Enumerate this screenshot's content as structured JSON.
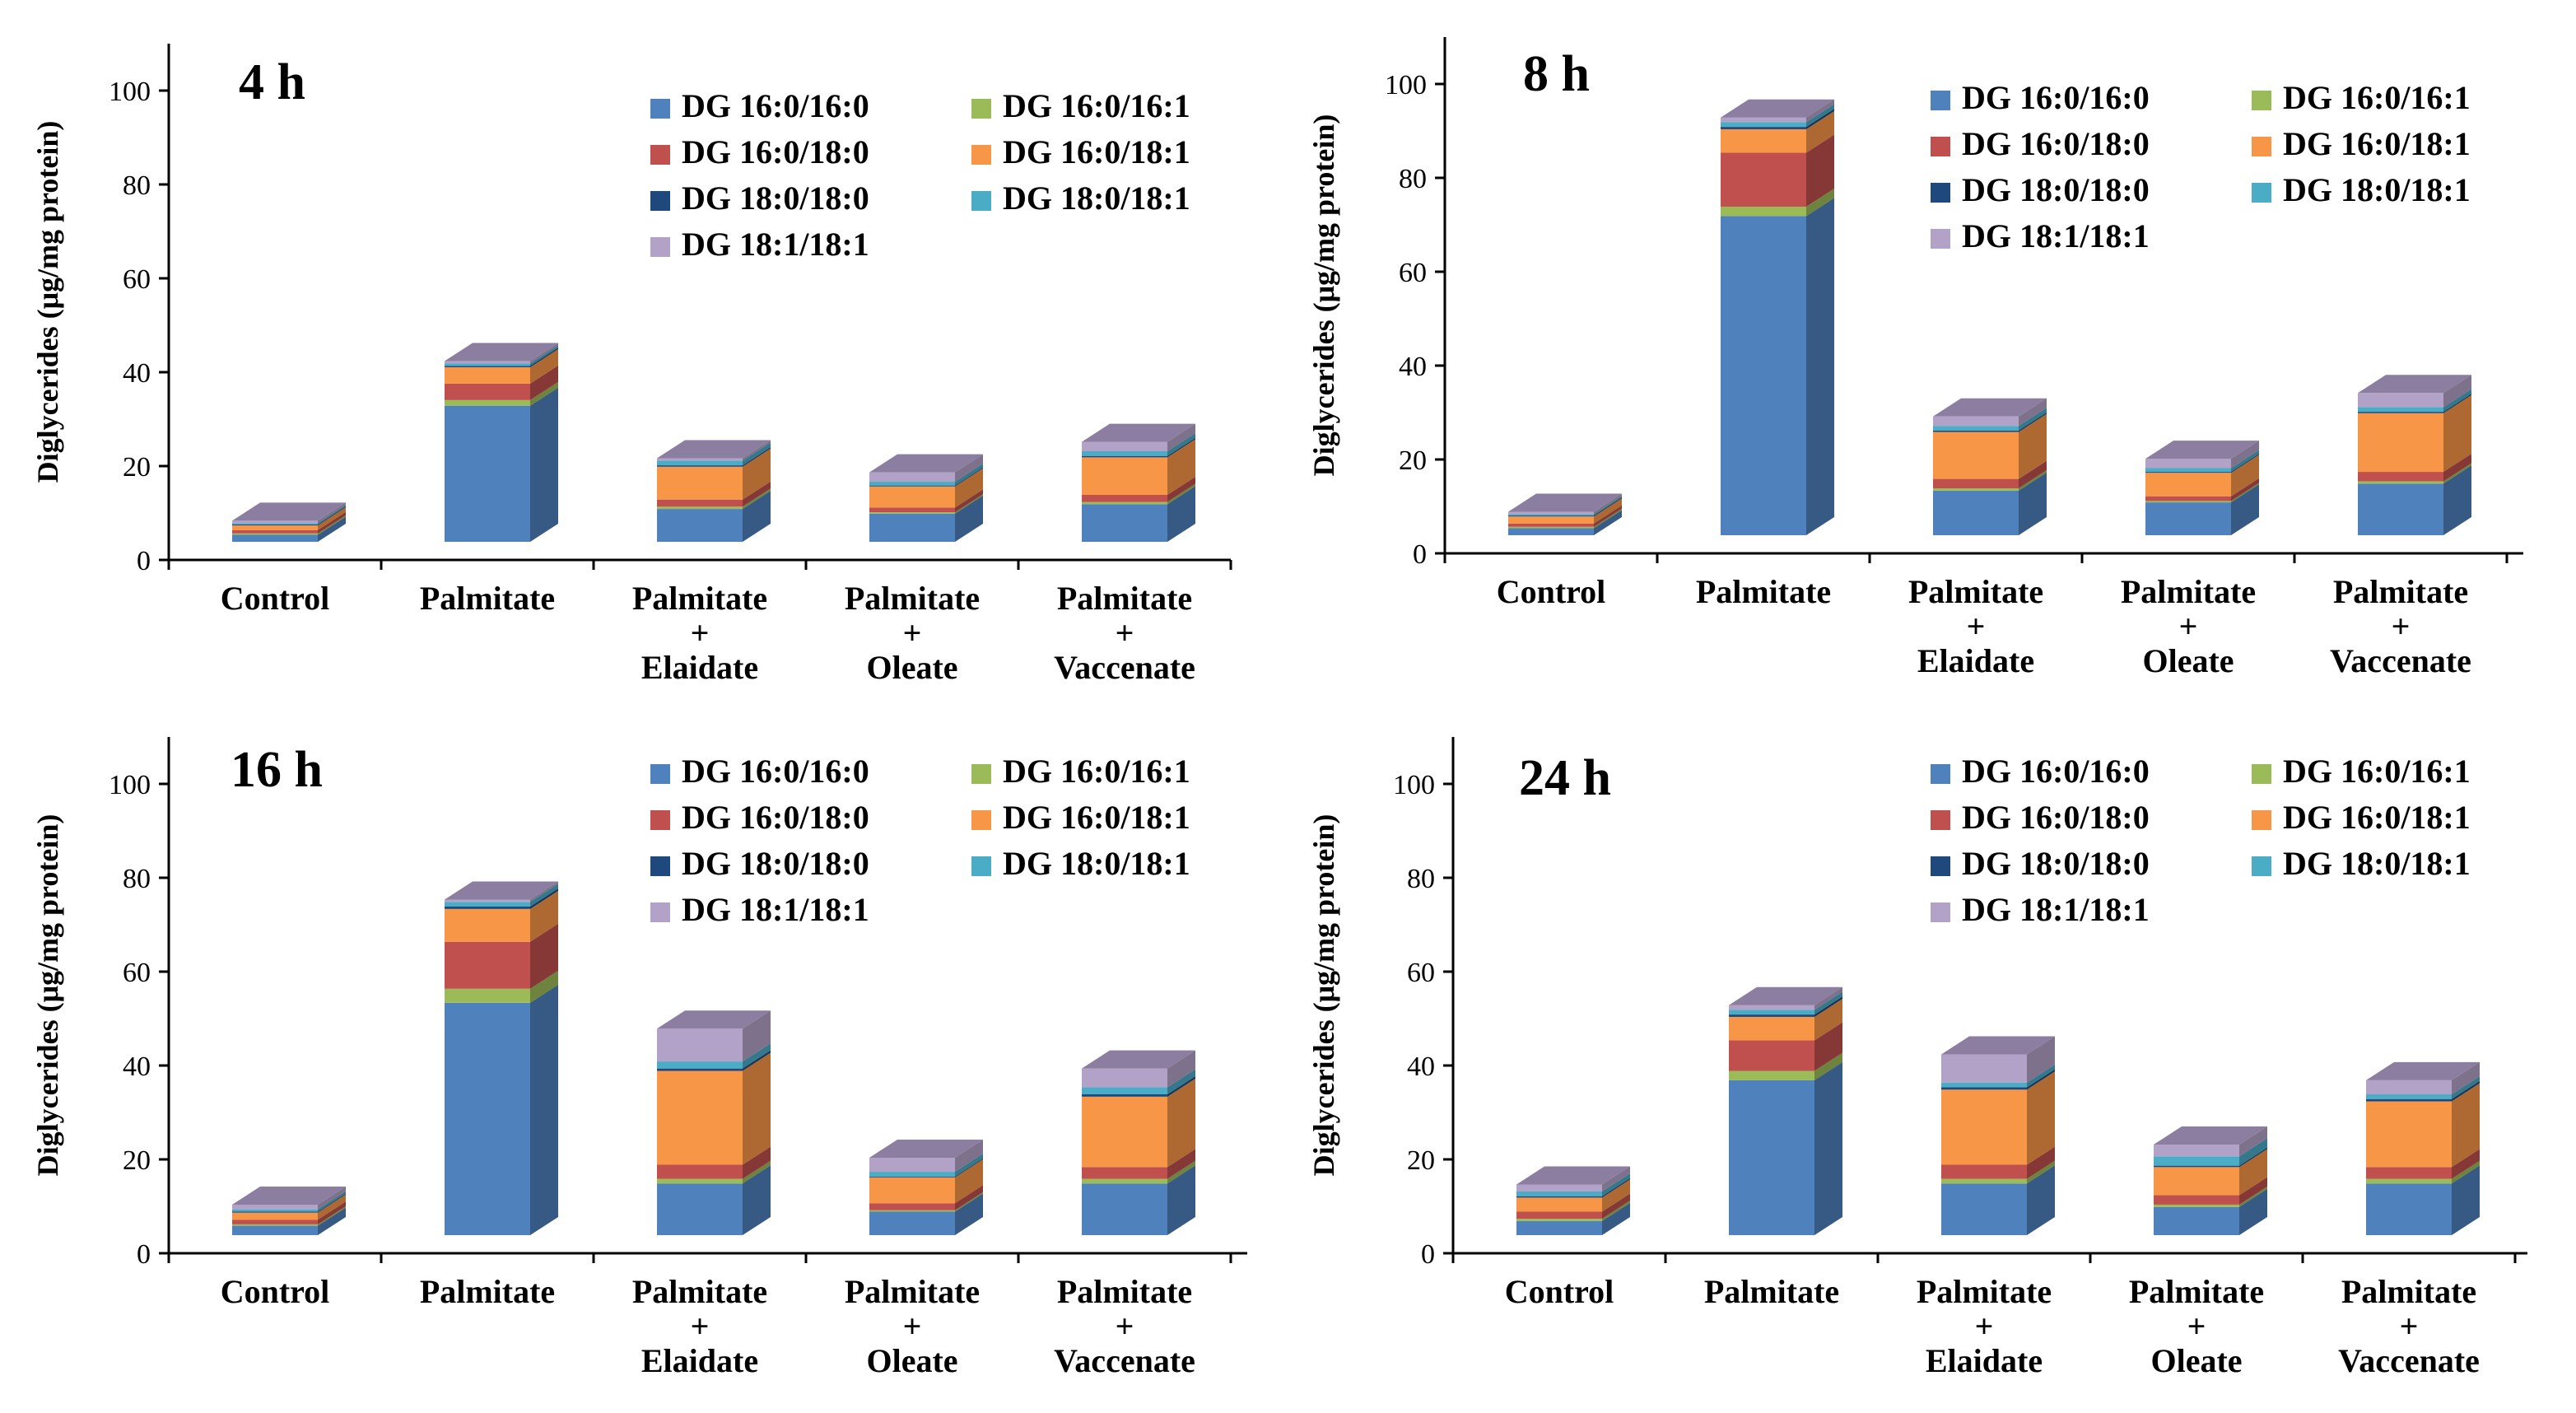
{
  "figure": {
    "series_names": [
      "DG 16:0/16:0",
      "DG 16:0/16:1",
      "DG 16:0/18:0",
      "DG 16:0/18:1",
      "DG 18:0/18:0",
      "DG 18:0/18:1",
      "DG 18:1/18:1"
    ],
    "series_colors": [
      "#4F81BD",
      "#9BBB59",
      "#C0504D",
      "#F79646",
      "#1F497D",
      "#4BACC6",
      "#B3A2C7"
    ],
    "top_face_color": "#8C7EA0"
  },
  "chart_data": [
    {
      "type": "bar",
      "stacked": true,
      "title": "4 h",
      "ylabel": "Diglycerides (μg/mg protein)",
      "ylim": [
        0,
        110
      ],
      "yticks": [
        0,
        20,
        40,
        60,
        80,
        100
      ],
      "categories": [
        "Control",
        "Palmitate",
        "Palmitate\n+\nElaidate",
        "Palmitate\n+\nOleate",
        "Palmitate\n+\nVaccenate"
      ],
      "legend_position": "top-right",
      "series": [
        {
          "name": "DG 16:0/16:0",
          "values": [
            1.5,
            29,
            7,
            6,
            8
          ]
        },
        {
          "name": "DG 16:0/16:1",
          "values": [
            0.3,
            1.2,
            0.5,
            0.3,
            0.5
          ]
        },
        {
          "name": "DG 16:0/18:0",
          "values": [
            0.7,
            3.5,
            1.5,
            1,
            1.5
          ]
        },
        {
          "name": "DG 16:0/18:1",
          "values": [
            1,
            3.5,
            7,
            4.5,
            8
          ]
        },
        {
          "name": "DG 18:0/18:0",
          "values": [
            0.2,
            0.3,
            0.3,
            0.2,
            0.3
          ]
        },
        {
          "name": "DG 18:0/18:1",
          "values": [
            0.3,
            0.5,
            1,
            0.8,
            1
          ]
        },
        {
          "name": "DG 18:1/18:1",
          "values": [
            0.5,
            0.5,
            0.5,
            2,
            2
          ]
        }
      ]
    },
    {
      "type": "bar",
      "stacked": true,
      "title": "8 h",
      "ylabel": "Diglycerides (μg/mg protein)",
      "ylim": [
        0,
        110
      ],
      "yticks": [
        0,
        20,
        40,
        60,
        80,
        100
      ],
      "categories": [
        "Control",
        "Palmitate",
        "Palmitate\n+\nElaidate",
        "Palmitate\n+\nOleate",
        "Palmitate\n+\nVaccenate"
      ],
      "legend_position": "top-right",
      "series": [
        {
          "name": "DG 16:0/16:0",
          "values": [
            1.5,
            68,
            9.5,
            7,
            11
          ]
        },
        {
          "name": "DG 16:0/16:1",
          "values": [
            0.3,
            2,
            0.5,
            0.3,
            0.5
          ]
        },
        {
          "name": "DG 16:0/18:0",
          "values": [
            0.7,
            11.5,
            2,
            1,
            2
          ]
        },
        {
          "name": "DG 16:0/18:1",
          "values": [
            1.5,
            5,
            10,
            5,
            12.5
          ]
        },
        {
          "name": "DG 18:0/18:0",
          "values": [
            0.2,
            0.5,
            0.3,
            0.2,
            0.3
          ]
        },
        {
          "name": "DG 18:0/18:1",
          "values": [
            0.3,
            1,
            1,
            0.8,
            1
          ]
        },
        {
          "name": "DG 18:1/18:1",
          "values": [
            0.5,
            1,
            2,
            2,
            3
          ]
        }
      ]
    },
    {
      "type": "bar",
      "stacked": true,
      "title": "16 h",
      "ylabel": "Diglycerides (μg/mg protein)",
      "ylim": [
        0,
        110
      ],
      "yticks": [
        0,
        20,
        40,
        60,
        80,
        100
      ],
      "categories": [
        "Control",
        "Palmitate",
        "Palmitate\n+\nElaidate",
        "Palmitate\n+\nOleate",
        "Palmitate\n+\nVaccenate"
      ],
      "legend_position": "top-right",
      "series": [
        {
          "name": "DG 16:0/16:0",
          "values": [
            2,
            49.5,
            11,
            5,
            11
          ]
        },
        {
          "name": "DG 16:0/16:1",
          "values": [
            0.3,
            3,
            1,
            0.3,
            1
          ]
        },
        {
          "name": "DG 16:0/18:0",
          "values": [
            1,
            10,
            3,
            1.5,
            2.5
          ]
        },
        {
          "name": "DG 16:0/18:1",
          "values": [
            1.5,
            7,
            20,
            5.5,
            15
          ]
        },
        {
          "name": "DG 18:0/18:0",
          "values": [
            0.2,
            0.5,
            0.5,
            0.2,
            0.5
          ]
        },
        {
          "name": "DG 18:0/18:1",
          "values": [
            0.5,
            1,
            1.5,
            1,
            1.5
          ]
        },
        {
          "name": "DG 18:1/18:1",
          "values": [
            1,
            0.5,
            7,
            3,
            4
          ]
        }
      ]
    },
    {
      "type": "bar",
      "stacked": true,
      "title": "24 h",
      "ylabel": "Diglycerides (μg/mg protein)",
      "ylim": [
        0,
        110
      ],
      "yticks": [
        0,
        20,
        40,
        60,
        80,
        100
      ],
      "categories": [
        "Control",
        "Palmitate",
        "Palmitate\n+\nElaidate",
        "Palmitate\n+\nOleate",
        "Palmitate\n+\nVaccenate"
      ],
      "legend_position": "top-right",
      "series": [
        {
          "name": "DG 16:0/16:0",
          "values": [
            3,
            33,
            11,
            6,
            11
          ]
        },
        {
          "name": "DG 16:0/16:1",
          "values": [
            0.5,
            2,
            1,
            0.5,
            1
          ]
        },
        {
          "name": "DG 16:0/18:0",
          "values": [
            1.5,
            6.5,
            3,
            2,
            2.5
          ]
        },
        {
          "name": "DG 16:0/18:1",
          "values": [
            3,
            5,
            16,
            6,
            14
          ]
        },
        {
          "name": "DG 18:0/18:0",
          "values": [
            0.3,
            0.5,
            0.5,
            0.3,
            0.5
          ]
        },
        {
          "name": "DG 18:0/18:1",
          "values": [
            1,
            1,
            1,
            2,
            1
          ]
        },
        {
          "name": "DG 18:1/18:1",
          "values": [
            1.5,
            1,
            6,
            2.5,
            3
          ]
        }
      ]
    }
  ]
}
